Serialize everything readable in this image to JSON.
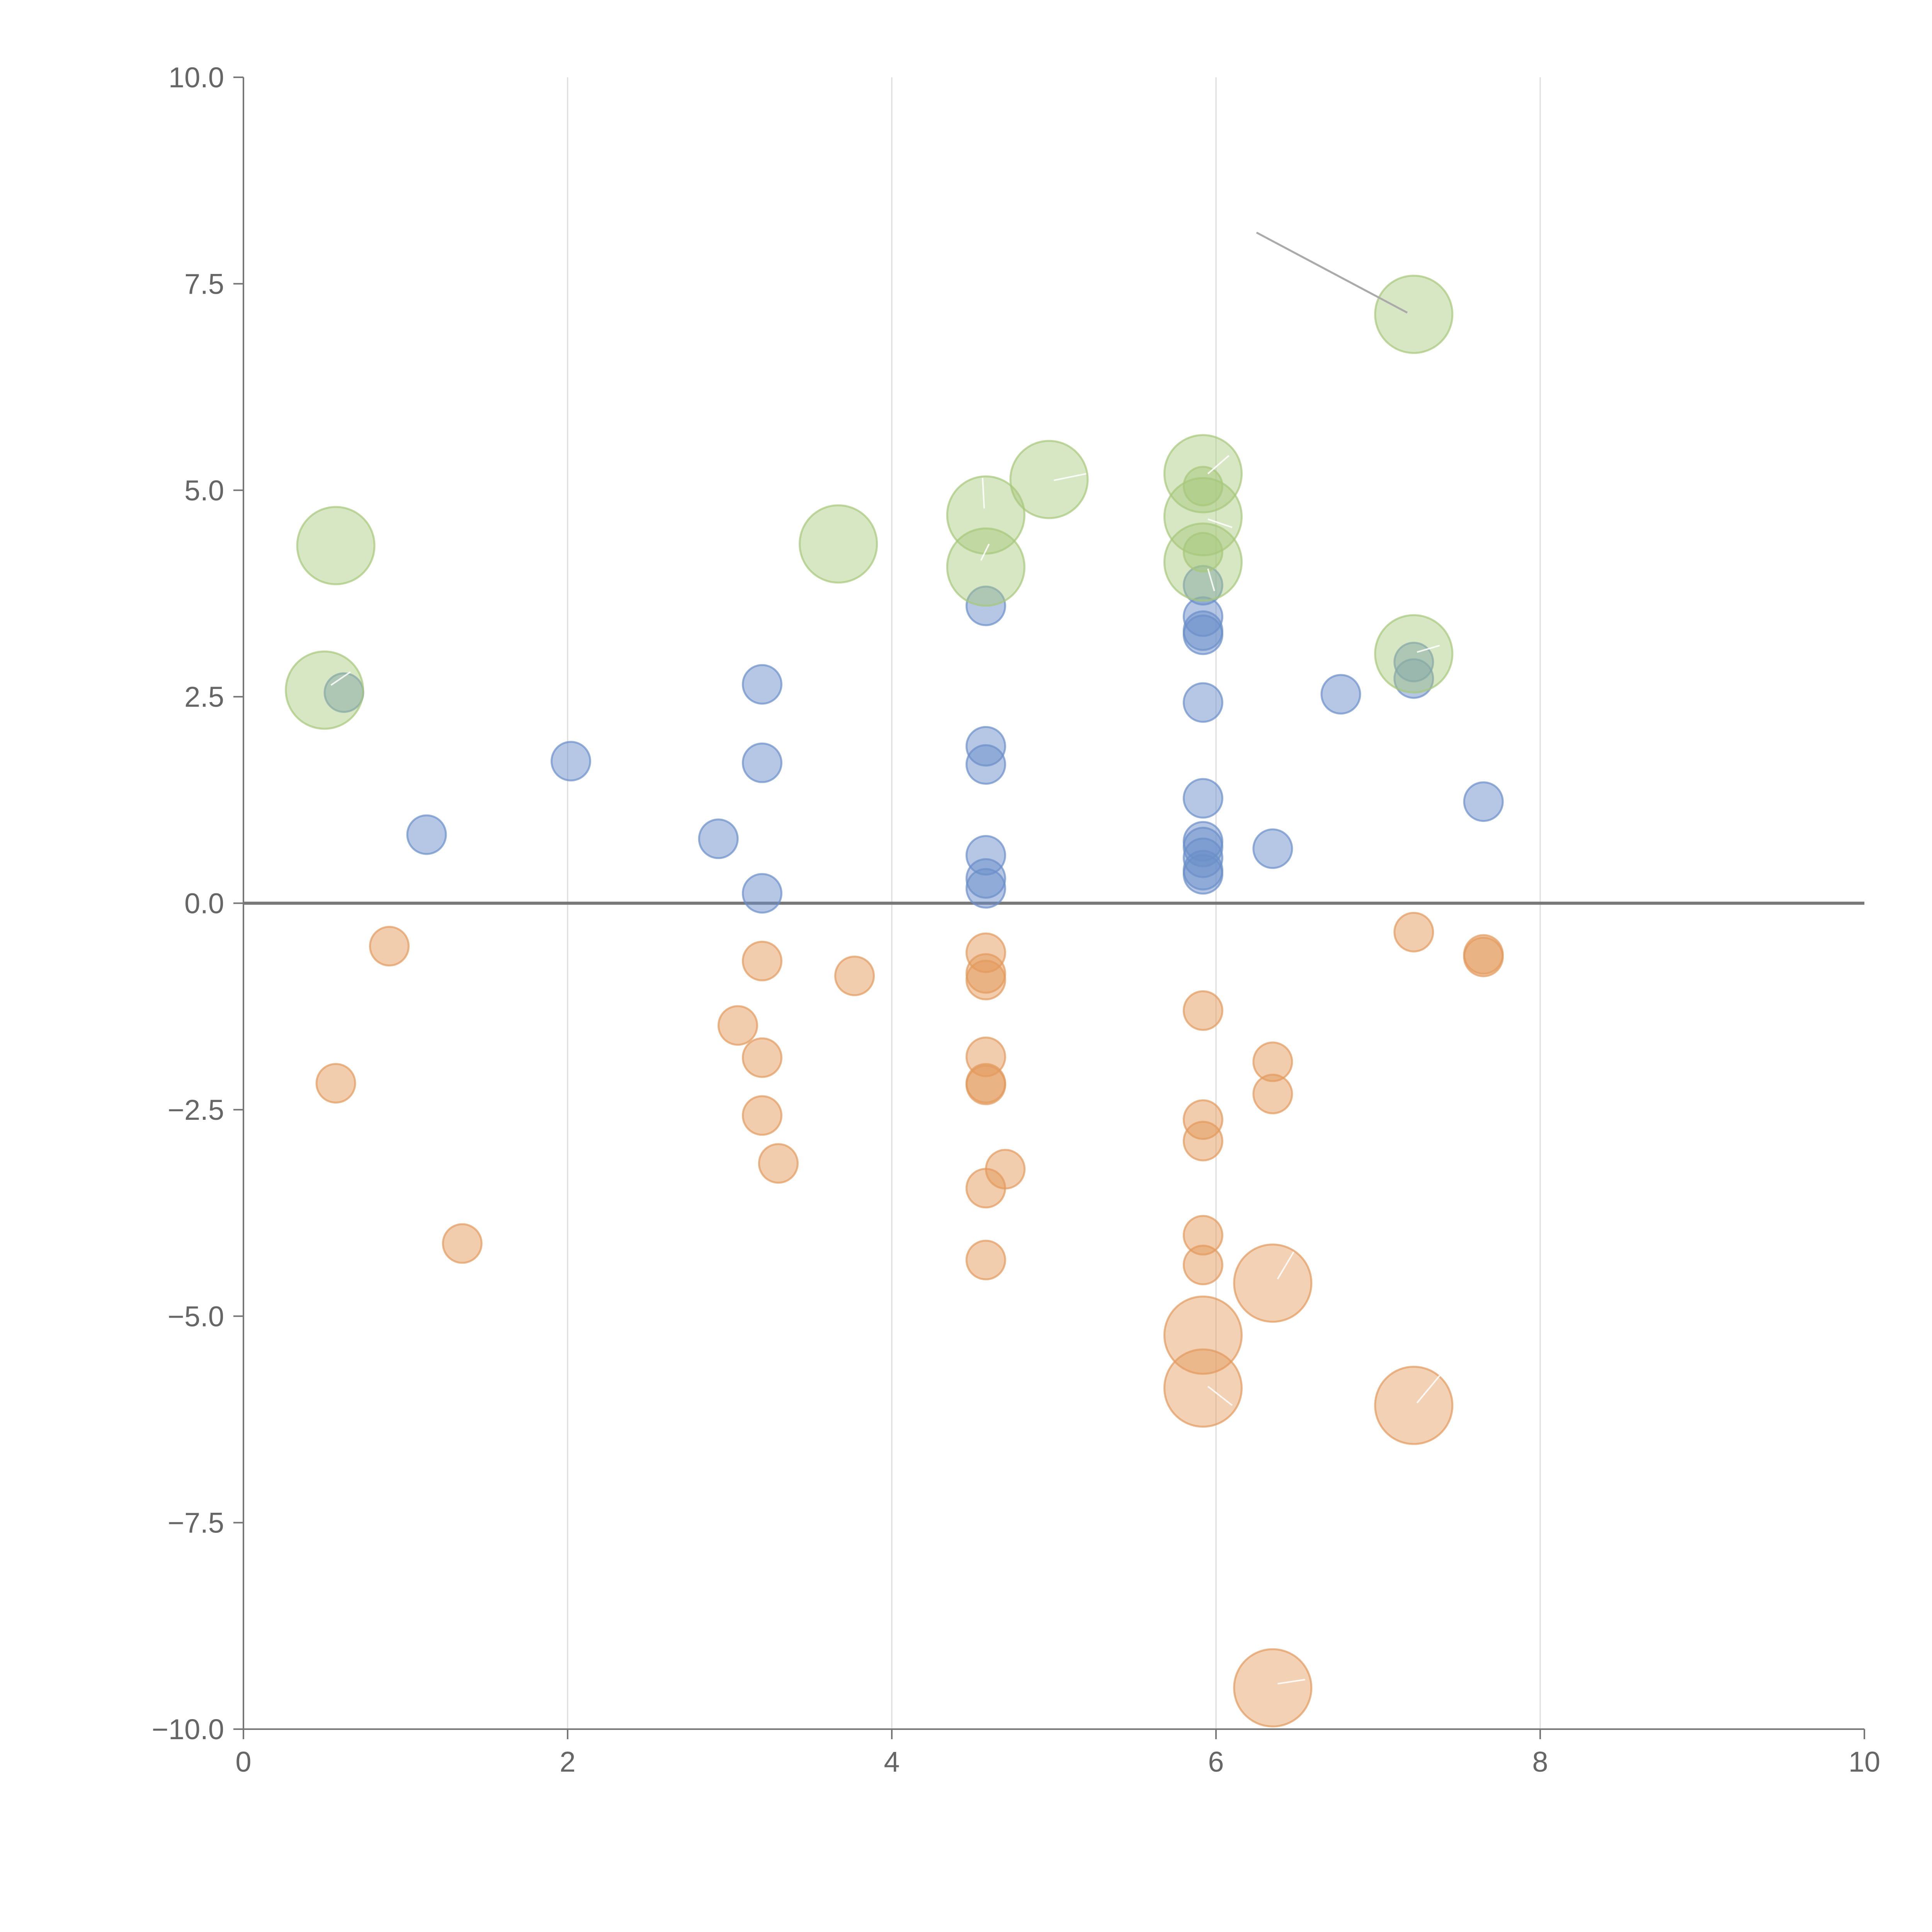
{
  "chart_data": {
    "type": "scatter",
    "title": "",
    "xlabel": "",
    "ylabel": "",
    "xlim": [
      0,
      10
    ],
    "ylim": [
      -10,
      10
    ],
    "grid": "vertical",
    "x_ticks": [
      0,
      2,
      4,
      6,
      8,
      10
    ],
    "x_tick_labels": [
      "0",
      "2",
      "4",
      "6",
      "8",
      "10"
    ],
    "y_ticks": [
      -10,
      -7.5,
      -5,
      -2.5,
      0,
      2.5,
      5,
      7.5,
      10
    ],
    "y_tick_labels": [
      "−10.0",
      "−7.5",
      "−5.0",
      "−2.5",
      "0.0",
      "2.5",
      "5.0",
      "7.5",
      "10.0"
    ],
    "zero_line": 0,
    "colors": {
      "blue": "#6b8fc9",
      "orange": "#e39a5c",
      "green": "#a6c77a"
    },
    "series": [
      {
        "name": "blue",
        "color": "#6b8fc9",
        "size": "small",
        "points": [
          [
            0.62,
            2.55
          ],
          [
            1.13,
            0.83
          ],
          [
            2.02,
            1.72
          ],
          [
            2.93,
            0.78
          ],
          [
            3.2,
            2.65
          ],
          [
            3.2,
            1.7
          ],
          [
            3.2,
            0.12
          ],
          [
            4.58,
            3.6
          ],
          [
            4.58,
            1.9
          ],
          [
            4.58,
            1.68
          ],
          [
            4.58,
            0.58
          ],
          [
            4.58,
            0.3
          ],
          [
            4.58,
            0.18
          ],
          [
            5.92,
            3.85
          ],
          [
            5.92,
            3.47
          ],
          [
            5.92,
            3.3
          ],
          [
            5.92,
            3.25
          ],
          [
            5.92,
            2.43
          ],
          [
            5.92,
            1.27
          ],
          [
            5.92,
            0.75
          ],
          [
            5.92,
            0.68
          ],
          [
            5.92,
            0.55
          ],
          [
            5.92,
            0.4
          ],
          [
            5.92,
            0.35
          ],
          [
            6.35,
            0.66
          ],
          [
            6.77,
            2.53
          ],
          [
            7.22,
            2.92
          ],
          [
            7.22,
            2.72
          ],
          [
            7.65,
            1.23
          ]
        ]
      },
      {
        "name": "orange",
        "color": "#e39a5c",
        "size": "small",
        "points": [
          [
            0.57,
            -2.18
          ],
          [
            0.9,
            -0.52
          ],
          [
            1.35,
            -4.12
          ],
          [
            3.05,
            -1.48
          ],
          [
            3.2,
            -0.7
          ],
          [
            3.2,
            -1.87
          ],
          [
            3.2,
            -2.57
          ],
          [
            3.3,
            -3.15
          ],
          [
            3.77,
            -0.88
          ],
          [
            4.58,
            -0.6
          ],
          [
            4.58,
            -0.85
          ],
          [
            4.58,
            -0.93
          ],
          [
            4.58,
            -1.86
          ],
          [
            4.58,
            -2.18
          ],
          [
            4.58,
            -2.2
          ],
          [
            4.58,
            -3.45
          ],
          [
            4.58,
            -4.32
          ],
          [
            4.7,
            -3.22
          ],
          [
            5.92,
            -1.3
          ],
          [
            5.92,
            -2.62
          ],
          [
            5.92,
            -2.88
          ],
          [
            5.92,
            -4.02
          ],
          [
            5.92,
            -4.38
          ],
          [
            6.35,
            -1.92
          ],
          [
            6.35,
            -2.31
          ],
          [
            7.22,
            -0.35
          ],
          [
            7.65,
            -0.62
          ],
          [
            7.65,
            -0.65
          ]
        ]
      },
      {
        "name": "orange-large",
        "color": "#e39a5c",
        "size": "large",
        "points": [
          [
            5.92,
            -5.23
          ],
          [
            5.92,
            -5.87
          ],
          [
            6.35,
            -4.6
          ],
          [
            7.22,
            -6.08
          ],
          [
            6.35,
            -9.5
          ]
        ]
      },
      {
        "name": "green-large",
        "color": "#a6c77a",
        "size": "large",
        "points": [
          [
            0.5,
            2.58
          ],
          [
            0.57,
            4.33
          ],
          [
            3.67,
            4.35
          ],
          [
            4.58,
            4.7
          ],
          [
            4.58,
            4.07
          ],
          [
            4.97,
            5.13
          ],
          [
            5.92,
            5.2
          ],
          [
            5.92,
            4.68
          ],
          [
            5.92,
            4.13
          ],
          [
            7.22,
            3.02
          ],
          [
            7.22,
            7.13
          ]
        ]
      },
      {
        "name": "green-small",
        "color": "#a6c77a",
        "size": "small",
        "points": [
          [
            5.92,
            5.05
          ],
          [
            5.92,
            4.25
          ]
        ]
      }
    ],
    "leader_lines": [
      {
        "from": [
          6.25,
          8.12
        ],
        "to": [
          7.18,
          7.15
        ],
        "color": "dark"
      },
      {
        "from": [
          0.54,
          2.64
        ],
        "to": [
          0.66,
          2.8
        ],
        "color": "light"
      },
      {
        "from": [
          4.57,
          4.78
        ],
        "to": [
          4.56,
          5.15
        ],
        "color": "light"
      },
      {
        "from": [
          4.55,
          4.15
        ],
        "to": [
          4.6,
          4.35
        ],
        "color": "light"
      },
      {
        "from": [
          5.0,
          5.12
        ],
        "to": [
          5.2,
          5.2
        ],
        "color": "light"
      },
      {
        "from": [
          5.95,
          5.2
        ],
        "to": [
          6.08,
          5.42
        ],
        "color": "light"
      },
      {
        "from": [
          5.95,
          4.65
        ],
        "to": [
          6.1,
          4.55
        ],
        "color": "light"
      },
      {
        "from": [
          5.95,
          4.05
        ],
        "to": [
          5.99,
          3.78
        ],
        "color": "light"
      },
      {
        "from": [
          7.24,
          3.04
        ],
        "to": [
          7.38,
          3.12
        ],
        "color": "light"
      },
      {
        "from": [
          5.95,
          -5.85
        ],
        "to": [
          6.1,
          -6.08
        ],
        "color": "light"
      },
      {
        "from": [
          6.38,
          -4.55
        ],
        "to": [
          6.48,
          -4.22
        ],
        "color": "light"
      },
      {
        "from": [
          7.24,
          -6.05
        ],
        "to": [
          7.38,
          -5.72
        ],
        "color": "light"
      },
      {
        "from": [
          6.38,
          -9.45
        ],
        "to": [
          6.55,
          -9.4
        ],
        "color": "light"
      }
    ]
  }
}
